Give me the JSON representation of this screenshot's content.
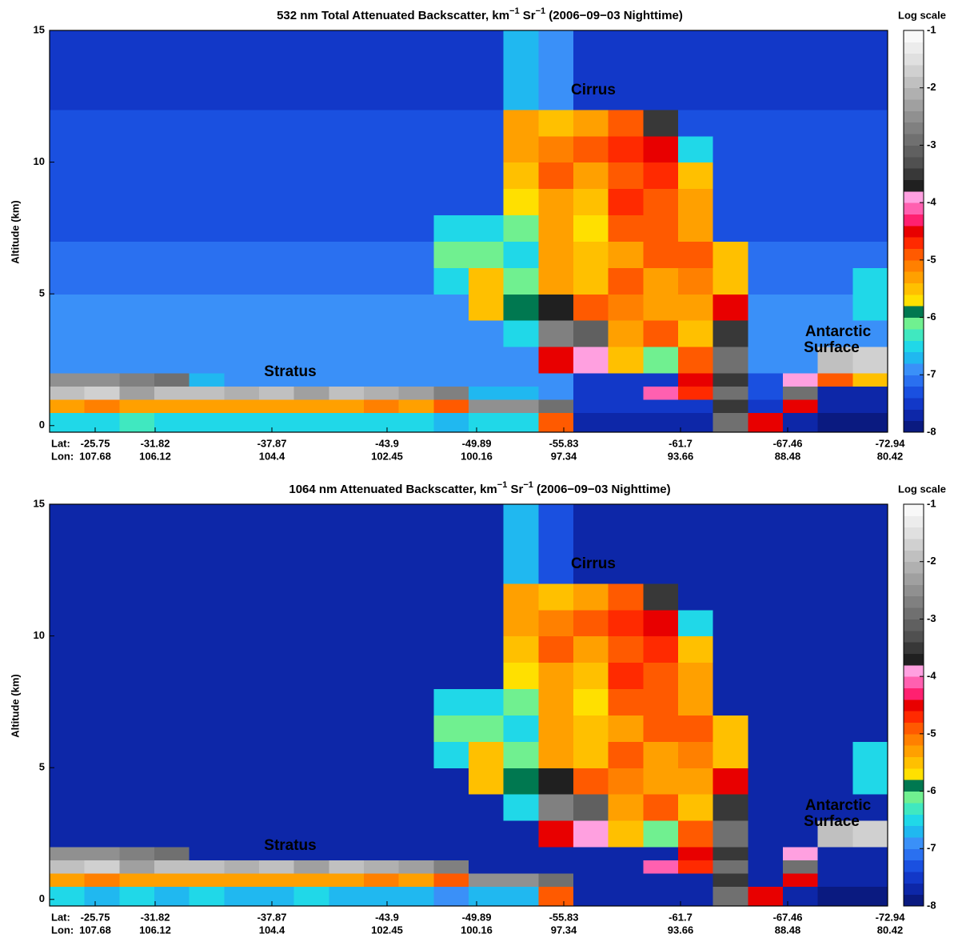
{
  "chart_data": [
    {
      "type": "heatmap",
      "title_parts": [
        {
          "text": "532 nm Total Attenuated Backscatter, km"
        },
        {
          "text": "−1",
          "sup": true
        },
        {
          "text": " Sr"
        },
        {
          "text": "−1",
          "sup": true
        },
        {
          "text": " (2006−09−03 Nighttime)"
        }
      ],
      "ylabel": "Altitude (km)",
      "ylim": [
        -0.25,
        15
      ],
      "yticks": [
        0,
        5,
        10,
        15
      ],
      "lat_label": "Lat:",
      "lon_label": "Lon:",
      "lat_ticks": [
        -25.75,
        -31.82,
        -37.87,
        -43.9,
        -49.89,
        -55.83,
        -61.7,
        -67.46,
        -72.94
      ],
      "lon_ticks": [
        107.68,
        106.12,
        104.4,
        102.45,
        100.16,
        97.34,
        93.66,
        88.48,
        80.42
      ],
      "annotations": [
        "Cirrus",
        "Stratus",
        "Antarctic",
        "Surface"
      ],
      "y_edges": [
        -0.25,
        0.5,
        1,
        1.5,
        2,
        3,
        4,
        5,
        6,
        7,
        8,
        9,
        10,
        11,
        12,
        15
      ],
      "z": [
        [
          -6.4,
          -6.5,
          -6.3,
          -6.5,
          -6.4,
          -6.5,
          -6.6,
          -6.4,
          -6.5,
          -6.6,
          -6.6,
          -6.7,
          -6.6,
          -6.6,
          -5,
          -7.8,
          -7.8,
          -7.8,
          -7.8,
          -3,
          -4.5,
          -7.8,
          -7.9,
          -7.9
        ],
        [
          -5.2,
          -5.1,
          -5.2,
          -5.3,
          -5.2,
          -5.3,
          -5.2,
          -5.3,
          -5.2,
          -5.1,
          -5.2,
          -5,
          -2.5,
          -2.5,
          -3,
          -7.5,
          -7.6,
          -7.5,
          -7.5,
          -3.5,
          -7.5,
          -4.5,
          -7.8,
          -7.8
        ],
        [
          -2,
          -1.8,
          -2.2,
          -1.9,
          -2,
          -2.1,
          -2,
          -2.2,
          -2,
          -2.1,
          -2.3,
          -2.8,
          -6.8,
          -6.8,
          -6.9,
          -7.6,
          -7.6,
          -4.2,
          -4.8,
          -3,
          -7.2,
          -3,
          -7.8,
          -7.8
        ],
        [
          -2.6,
          -2.4,
          -2.7,
          -3,
          -6.8,
          -6.9,
          -6.9,
          -6.9,
          -6.9,
          -6.9,
          -6.9,
          -6.9,
          -6.9,
          -6.9,
          -7,
          -7.5,
          -7.6,
          -7.6,
          -4.6,
          -3.5,
          -7.3,
          -4,
          -5,
          -5.5
        ],
        [
          -6.9,
          -6.9,
          -6.9,
          -6.9,
          -6.9,
          -6.9,
          -6.9,
          -6.9,
          -6.9,
          -6.9,
          -6.9,
          -6.9,
          -6.9,
          -6.9,
          -4.5,
          -4,
          -5.5,
          -6.2,
          -5,
          -3,
          -7,
          -7,
          -2,
          -1.8
        ],
        [
          -7,
          -7,
          -7,
          -7,
          -7,
          -7,
          -7,
          -7,
          -7,
          -7,
          -7,
          -7,
          -7,
          -6.6,
          -2.8,
          -3.2,
          -5.3,
          -5,
          -5.5,
          -3.5,
          -7,
          -7,
          -7,
          -7
        ],
        [
          -7,
          -7,
          -7,
          -7,
          -7,
          -7,
          -7,
          -7,
          -7,
          -7,
          -7,
          -7,
          -5.6,
          -5.9,
          -3.8,
          -5,
          -5.1,
          -5.3,
          -5.2,
          -4.5,
          -7,
          -7,
          -7,
          -6.6
        ],
        [
          -7.1,
          -7.1,
          -7.1,
          -7.1,
          -7.1,
          -7.1,
          -7.1,
          -7.1,
          -7.1,
          -7.1,
          -7.1,
          -6.6,
          -5.6,
          -6.1,
          -5.2,
          -5.4,
          -5,
          -5.2,
          -5.1,
          -5.5,
          -7.1,
          -7.1,
          -7.1,
          -6.5
        ],
        [
          -7.1,
          -7.1,
          -7.1,
          -7.1,
          -7.1,
          -7.1,
          -7.1,
          -7.1,
          -7.1,
          -7.1,
          -7.1,
          -6.2,
          -6.1,
          -6.6,
          -5.3,
          -5.6,
          -5.2,
          -5,
          -5,
          -5.6,
          -7.1,
          -7.1,
          -7.1,
          -7.1
        ],
        [
          -7.2,
          -7.2,
          -7.2,
          -7.2,
          -7.2,
          -7.2,
          -7.2,
          -7.2,
          -7.2,
          -7.2,
          -7.2,
          -6.4,
          -6.6,
          -6.1,
          -5.2,
          -5.8,
          -5,
          -5,
          -5.2,
          -7.2,
          -7.2,
          -7.2,
          -7.2,
          -7.2
        ],
        [
          -7.3,
          -7.3,
          -7.3,
          -7.3,
          -7.3,
          -7.3,
          -7.3,
          -7.3,
          -7.3,
          -7.3,
          -7.3,
          -7.3,
          -7.3,
          -5.8,
          -5.2,
          -5.5,
          -4.8,
          -5,
          -5.3,
          -7.3,
          -7.3,
          -7.3,
          -7.3,
          -7.3
        ],
        [
          -7.3,
          -7.3,
          -7.3,
          -7.3,
          -7.3,
          -7.3,
          -7.3,
          -7.3,
          -7.3,
          -7.3,
          -7.3,
          -7.3,
          -7.3,
          -5.5,
          -5,
          -5.2,
          -5,
          -4.8,
          -5.5,
          -7.3,
          -7.3,
          -7.3,
          -7.3,
          -7.3
        ],
        [
          -7.3,
          -7.3,
          -7.3,
          -7.3,
          -7.3,
          -7.3,
          -7.3,
          -7.3,
          -7.3,
          -7.3,
          -7.3,
          -7.3,
          -7.3,
          -5.3,
          -5.1,
          -5,
          -4.8,
          -4.5,
          -6.6,
          -7.3,
          -7.3,
          -7.3,
          -7.3,
          -7.3
        ],
        [
          -7.3,
          -7.3,
          -7.3,
          -7.3,
          -7.3,
          -7.3,
          -7.3,
          -7.3,
          -7.3,
          -7.3,
          -7.3,
          -7.3,
          -7.3,
          -5.2,
          -5.6,
          -5.2,
          -5,
          -3.6,
          -7.3,
          -7.3,
          -7.3,
          -7.3,
          -7.3,
          -7.3
        ],
        [
          -7.4,
          -7.4,
          -7.4,
          -7.4,
          -7.4,
          -7.4,
          -7.4,
          -7.4,
          -7.4,
          -7.4,
          -7.4,
          -7.4,
          -7.4,
          -6.8,
          -7,
          -7.4,
          -7.4,
          -7.4,
          -7.4,
          -7.4,
          -7.4,
          -7.4,
          -7.4,
          -7.4
        ]
      ],
      "colorbar": {
        "label": "Log scale",
        "lim": [
          -8,
          -1
        ],
        "ticks": [
          -1,
          -2,
          -3,
          -4,
          -5,
          -6,
          -7,
          -8
        ],
        "colors": [
          "#0a1a80",
          "#0d27a8",
          "#1238c8",
          "#1a50e0",
          "#2a70f0",
          "#3a90f8",
          "#20b8f0",
          "#20d8e8",
          "#40e8c0",
          "#70f090",
          "#007850",
          "#ffe000",
          "#ffc000",
          "#ffa000",
          "#ff8000",
          "#ff5a00",
          "#ff2a00",
          "#e80000",
          "#ff2070",
          "#ff60b0",
          "#ffa0e0",
          "#202020",
          "#383838",
          "#505050",
          "#606060",
          "#707070",
          "#808080",
          "#909090",
          "#a0a0a0",
          "#b0b0b0",
          "#c0c0c0",
          "#d0d0d0",
          "#e0e0e0",
          "#ececec",
          "#f8f8f8"
        ]
      }
    },
    {
      "type": "heatmap",
      "title_parts": [
        {
          "text": "1064 nm Attenuated Backscatter, km"
        },
        {
          "text": "−1",
          "sup": true
        },
        {
          "text": " Sr"
        },
        {
          "text": "−1",
          "sup": true
        },
        {
          "text": " (2006−09−03 Nighttime)"
        }
      ],
      "ylabel": "Altitude (km)",
      "ylim": [
        -0.25,
        15
      ],
      "yticks": [
        0,
        5,
        10,
        15
      ],
      "lat_label": "Lat:",
      "lon_label": "Lon:",
      "lat_ticks": [
        -25.75,
        -31.82,
        -37.87,
        -43.9,
        -49.89,
        -55.83,
        -61.7,
        -67.46,
        -72.94
      ],
      "lon_ticks": [
        107.68,
        106.12,
        104.4,
        102.45,
        100.16,
        97.34,
        93.66,
        88.48,
        80.42
      ],
      "annotations": [
        "Cirrus",
        "Stratus",
        "Antarctic",
        "Surface"
      ],
      "y_edges": [
        -0.25,
        0.5,
        1,
        1.5,
        2,
        3,
        4,
        5,
        6,
        7,
        8,
        9,
        10,
        11,
        12,
        15
      ],
      "z": [
        [
          -6.6,
          -6.7,
          -6.5,
          -6.7,
          -6.6,
          -6.7,
          -6.8,
          -6.6,
          -6.7,
          -6.8,
          -6.8,
          -6.9,
          -6.8,
          -6.8,
          -5,
          -7.8,
          -7.8,
          -7.8,
          -7.8,
          -3,
          -4.5,
          -7.8,
          -7.9,
          -7.9
        ],
        [
          -5.2,
          -5.1,
          -5.2,
          -5.3,
          -5.2,
          -5.3,
          -5.2,
          -5.3,
          -5.2,
          -5.1,
          -5.2,
          -5,
          -2.5,
          -2.5,
          -3,
          -7.7,
          -7.7,
          -7.7,
          -7.7,
          -3.5,
          -7.7,
          -4.5,
          -7.8,
          -7.8
        ],
        [
          -2,
          -1.8,
          -2.2,
          -1.9,
          -2,
          -2.1,
          -2,
          -2.2,
          -2,
          -2.1,
          -2.3,
          -2.8,
          -7.7,
          -7.7,
          -7.7,
          -7.7,
          -7.7,
          -4.2,
          -4.8,
          -3,
          -7.7,
          -3,
          -7.8,
          -7.8
        ],
        [
          -2.6,
          -2.4,
          -2.7,
          -3,
          -7.7,
          -7.7,
          -7.7,
          -7.7,
          -7.7,
          -7.7,
          -7.7,
          -7.7,
          -7.7,
          -7.7,
          -7.7,
          -7.7,
          -7.7,
          -7.7,
          -4.6,
          -3.5,
          -7.7,
          -4,
          -7.8,
          -7.8
        ],
        [
          -7.7,
          -7.7,
          -7.7,
          -7.7,
          -7.7,
          -7.7,
          -7.7,
          -7.7,
          -7.7,
          -7.7,
          -7.7,
          -7.7,
          -7.7,
          -7.7,
          -4.5,
          -4,
          -5.5,
          -6.2,
          -5,
          -3,
          -7.7,
          -7.7,
          -2,
          -1.8
        ],
        [
          -7.7,
          -7.7,
          -7.7,
          -7.7,
          -7.7,
          -7.7,
          -7.7,
          -7.7,
          -7.7,
          -7.7,
          -7.7,
          -7.7,
          -7.7,
          -6.6,
          -2.8,
          -3.2,
          -5.3,
          -5,
          -5.5,
          -3.5,
          -7.7,
          -7.7,
          -7.7,
          -7.7
        ],
        [
          -7.7,
          -7.7,
          -7.7,
          -7.7,
          -7.7,
          -7.7,
          -7.7,
          -7.7,
          -7.7,
          -7.7,
          -7.7,
          -7.7,
          -5.6,
          -5.9,
          -3.8,
          -5,
          -5.1,
          -5.3,
          -5.2,
          -4.5,
          -7.7,
          -7.7,
          -7.7,
          -6.6
        ],
        [
          -7.7,
          -7.7,
          -7.7,
          -7.7,
          -7.7,
          -7.7,
          -7.7,
          -7.7,
          -7.7,
          -7.7,
          -7.7,
          -6.6,
          -5.6,
          -6.1,
          -5.2,
          -5.4,
          -5,
          -5.2,
          -5.1,
          -5.5,
          -7.7,
          -7.7,
          -7.7,
          -6.5
        ],
        [
          -7.7,
          -7.7,
          -7.7,
          -7.7,
          -7.7,
          -7.7,
          -7.7,
          -7.7,
          -7.7,
          -7.7,
          -7.7,
          -6.2,
          -6.1,
          -6.6,
          -5.3,
          -5.6,
          -5.2,
          -5,
          -5,
          -5.6,
          -7.7,
          -7.7,
          -7.7,
          -7.7
        ],
        [
          -7.7,
          -7.7,
          -7.7,
          -7.7,
          -7.7,
          -7.7,
          -7.7,
          -7.7,
          -7.7,
          -7.7,
          -7.7,
          -6.4,
          -6.6,
          -6.1,
          -5.2,
          -5.8,
          -5,
          -5,
          -5.2,
          -7.7,
          -7.7,
          -7.7,
          -7.7,
          -7.7
        ],
        [
          -7.7,
          -7.7,
          -7.7,
          -7.7,
          -7.7,
          -7.7,
          -7.7,
          -7.7,
          -7.7,
          -7.7,
          -7.7,
          -7.7,
          -7.7,
          -5.8,
          -5.2,
          -5.5,
          -4.8,
          -5,
          -5.3,
          -7.7,
          -7.7,
          -7.7,
          -7.7,
          -7.7
        ],
        [
          -7.7,
          -7.7,
          -7.7,
          -7.7,
          -7.7,
          -7.7,
          -7.7,
          -7.7,
          -7.7,
          -7.7,
          -7.7,
          -7.7,
          -7.7,
          -5.5,
          -5,
          -5.2,
          -5,
          -4.8,
          -5.5,
          -7.7,
          -7.7,
          -7.7,
          -7.7,
          -7.7
        ],
        [
          -7.7,
          -7.7,
          -7.7,
          -7.7,
          -7.7,
          -7.7,
          -7.7,
          -7.7,
          -7.7,
          -7.7,
          -7.7,
          -7.7,
          -7.7,
          -5.3,
          -5.1,
          -5,
          -4.8,
          -4.5,
          -6.6,
          -7.7,
          -7.7,
          -7.7,
          -7.7,
          -7.7
        ],
        [
          -7.7,
          -7.7,
          -7.7,
          -7.7,
          -7.7,
          -7.7,
          -7.7,
          -7.7,
          -7.7,
          -7.7,
          -7.7,
          -7.7,
          -7.7,
          -5.2,
          -5.6,
          -5.2,
          -5,
          -3.6,
          -7.7,
          -7.7,
          -7.7,
          -7.7,
          -7.7,
          -7.7
        ],
        [
          -7.7,
          -7.7,
          -7.7,
          -7.7,
          -7.7,
          -7.7,
          -7.7,
          -7.7,
          -7.7,
          -7.7,
          -7.7,
          -7.7,
          -7.7,
          -6.8,
          -7.2,
          -7.7,
          -7.7,
          -7.7,
          -7.7,
          -7.7,
          -7.7,
          -7.7,
          -7.7,
          -7.7
        ]
      ],
      "colorbar": {
        "label": "Log scale",
        "lim": [
          -8,
          -1
        ],
        "ticks": [
          -1,
          -2,
          -3,
          -4,
          -5,
          -6,
          -7,
          -8
        ],
        "colors": [
          "#0a1a80",
          "#0d27a8",
          "#1238c8",
          "#1a50e0",
          "#2a70f0",
          "#3a90f8",
          "#20b8f0",
          "#20d8e8",
          "#40e8c0",
          "#70f090",
          "#007850",
          "#ffe000",
          "#ffc000",
          "#ffa000",
          "#ff8000",
          "#ff5a00",
          "#ff2a00",
          "#e80000",
          "#ff2070",
          "#ff60b0",
          "#ffa0e0",
          "#202020",
          "#383838",
          "#505050",
          "#606060",
          "#707070",
          "#808080",
          "#909090",
          "#a0a0a0",
          "#b0b0b0",
          "#c0c0c0",
          "#d0d0d0",
          "#e0e0e0",
          "#ececec",
          "#f8f8f8"
        ]
      }
    }
  ]
}
